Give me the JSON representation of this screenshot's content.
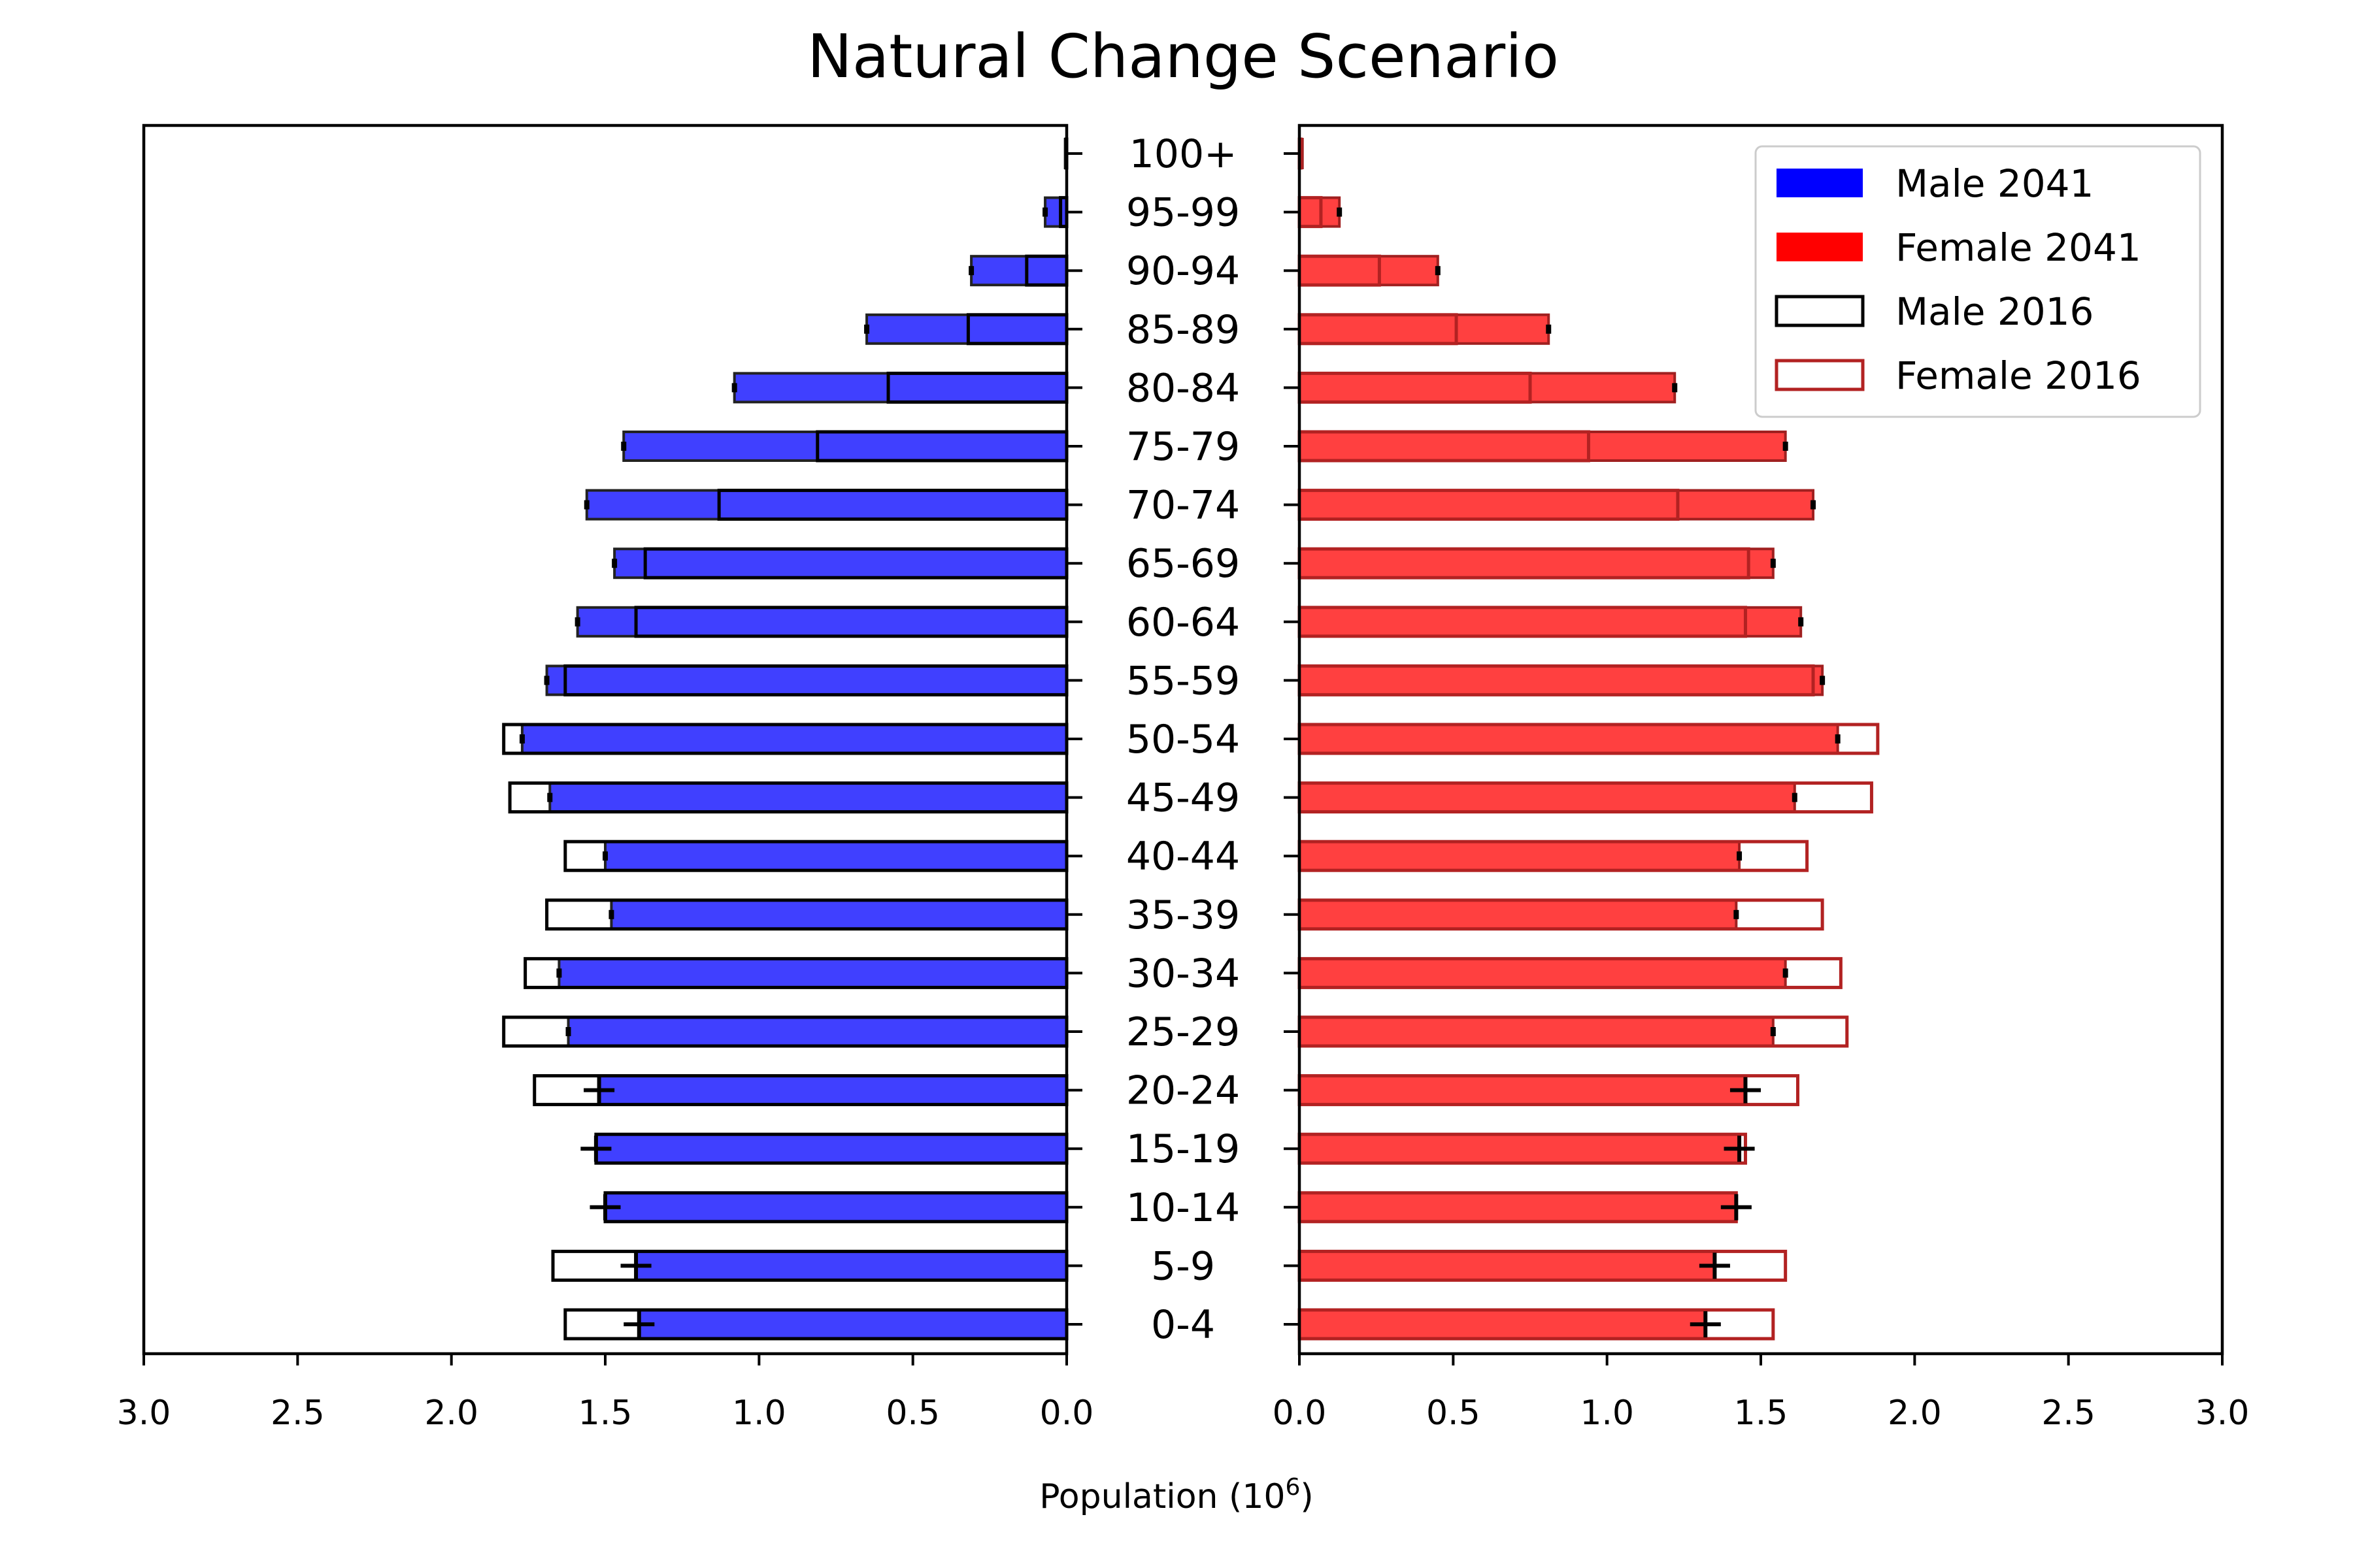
{
  "chart_data": {
    "type": "bar",
    "subtype": "population-pyramid",
    "title": "Natural Change Scenario",
    "xlabel": "Population (10",
    "xlabel_sup": "6",
    "xlabel_close": ")",
    "xlim": [
      0,
      3.0
    ],
    "x_ticks": [
      "3.0",
      "2.5",
      "2.0",
      "1.5",
      "1.0",
      "0.5",
      "0.0"
    ],
    "x_ticks_right": [
      "0.0",
      "0.5",
      "1.0",
      "1.5",
      "2.0",
      "2.5",
      "3.0"
    ],
    "categories": [
      "0-4",
      "5-9",
      "10-14",
      "15-19",
      "20-24",
      "25-29",
      "30-34",
      "35-39",
      "40-44",
      "45-49",
      "50-54",
      "55-59",
      "60-64",
      "65-69",
      "70-74",
      "75-79",
      "80-84",
      "85-89",
      "90-94",
      "95-99",
      "100+"
    ],
    "series": [
      {
        "name": "Male 2041",
        "side": "left",
        "style": "filled",
        "color": "#0000ff",
        "values": [
          1.39,
          1.4,
          1.5,
          1.53,
          1.52,
          1.62,
          1.65,
          1.48,
          1.5,
          1.68,
          1.77,
          1.69,
          1.59,
          1.47,
          1.56,
          1.44,
          1.08,
          0.65,
          0.31,
          0.07,
          0.005
        ],
        "errors": [
          0.05,
          0.05,
          0.05,
          0.05,
          0.05,
          0.0,
          0.0,
          0.0,
          0.0,
          0.0,
          0.0,
          0.0,
          0.0,
          0.0,
          0.0,
          0.0,
          0.0,
          0.0,
          0.0,
          0.0,
          0.0
        ]
      },
      {
        "name": "Female 2041",
        "side": "right",
        "style": "filled",
        "color": "#ff0000",
        "values": [
          1.32,
          1.35,
          1.42,
          1.43,
          1.45,
          1.54,
          1.58,
          1.42,
          1.43,
          1.61,
          1.75,
          1.7,
          1.63,
          1.54,
          1.67,
          1.58,
          1.22,
          0.81,
          0.45,
          0.13,
          0.01
        ],
        "errors": [
          0.05,
          0.05,
          0.05,
          0.05,
          0.05,
          0.0,
          0.0,
          0.0,
          0.0,
          0.0,
          0.0,
          0.0,
          0.0,
          0.0,
          0.0,
          0.0,
          0.0,
          0.0,
          0.0,
          0.0,
          0.0
        ]
      },
      {
        "name": "Male 2016",
        "side": "left",
        "style": "outline",
        "color": "#000000",
        "values": [
          1.63,
          1.67,
          1.5,
          1.53,
          1.73,
          1.83,
          1.76,
          1.69,
          1.63,
          1.81,
          1.83,
          1.63,
          1.4,
          1.37,
          1.13,
          0.81,
          0.58,
          0.32,
          0.13,
          0.02,
          0.002
        ]
      },
      {
        "name": "Female 2016",
        "side": "right",
        "style": "outline",
        "color": "#b22222",
        "values": [
          1.54,
          1.58,
          1.42,
          1.45,
          1.62,
          1.78,
          1.76,
          1.7,
          1.65,
          1.86,
          1.88,
          1.67,
          1.45,
          1.46,
          1.23,
          0.94,
          0.75,
          0.51,
          0.26,
          0.07,
          0.005
        ]
      }
    ],
    "legend": [
      "Male 2041",
      "Female 2041",
      "Male 2016",
      "Female 2016"
    ],
    "legend_position": "top-right"
  }
}
